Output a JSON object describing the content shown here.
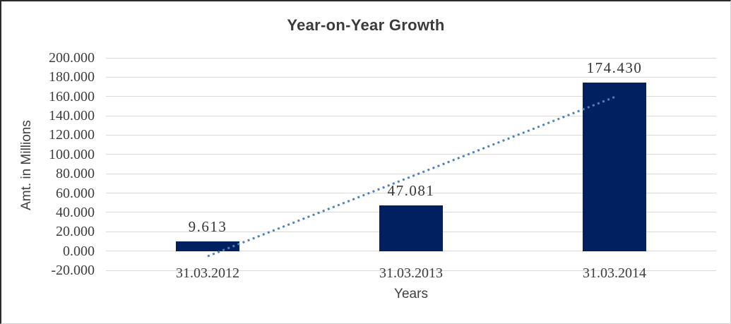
{
  "chart_data": {
    "type": "bar",
    "title": "Year-on-Year Growth",
    "xlabel": "Years",
    "ylabel": "Amt. in Millions",
    "categories": [
      "31.03.2012",
      "31.03.2013",
      "31.03.2014"
    ],
    "values": [
      9.613,
      47.081,
      174.43
    ],
    "data_labels": [
      "9.613",
      "47.081",
      "174.430"
    ],
    "ylim": [
      -20,
      200
    ],
    "ytick_step": 20,
    "yticks": [
      200,
      180,
      160,
      140,
      120,
      100,
      80,
      60,
      40,
      20,
      0,
      -20
    ],
    "ytick_labels": [
      "200.000",
      "180.000",
      "160.000",
      "140.000",
      "120.000",
      "100.000",
      "80.000",
      "60.000",
      "40.000",
      "20.000",
      "0.000",
      "-20.000"
    ],
    "grid": "horizontal",
    "legend": "none",
    "bar_color": "#002060",
    "gridline_color": "#d9d9d9",
    "trendline": {
      "type": "linear",
      "style": "dotted",
      "color": "#4f81bd",
      "start_value": -5.4,
      "end_value": 159.4
    }
  }
}
